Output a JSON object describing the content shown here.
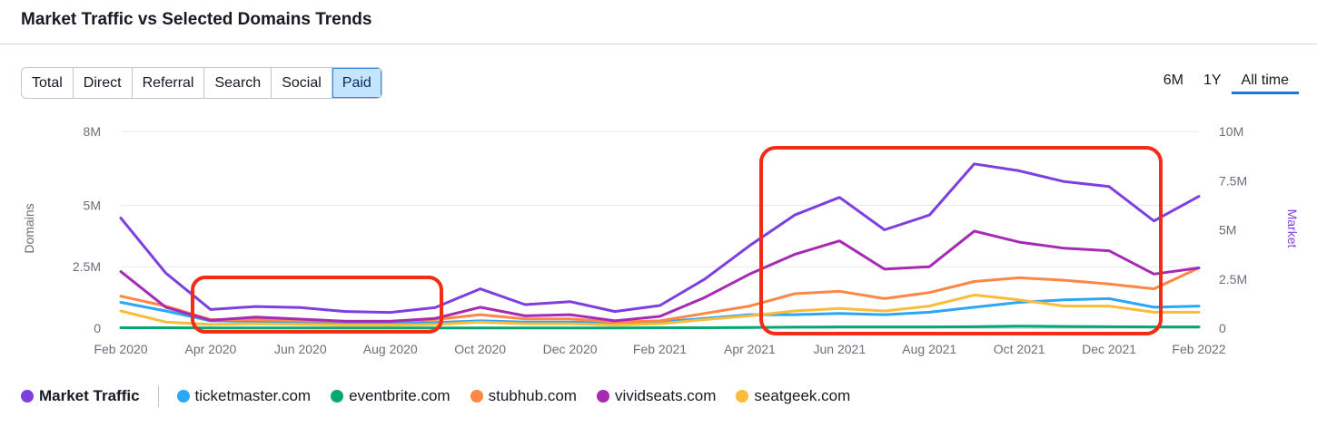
{
  "header": {
    "title": "Market Traffic vs Selected Domains Trends"
  },
  "tabs": [
    {
      "label": "Total",
      "active": false
    },
    {
      "label": "Direct",
      "active": false
    },
    {
      "label": "Referral",
      "active": false
    },
    {
      "label": "Search",
      "active": false
    },
    {
      "label": "Social",
      "active": false
    },
    {
      "label": "Paid",
      "active": true
    }
  ],
  "ranges": [
    {
      "label": "6M",
      "active": false
    },
    {
      "label": "1Y",
      "active": false
    },
    {
      "label": "All time",
      "active": true
    }
  ],
  "legend": [
    {
      "label": "Market Traffic",
      "color": "#7e3fe0",
      "primary": true
    },
    {
      "label": "ticketmaster.com",
      "color": "#2aa7f8"
    },
    {
      "label": "eventbrite.com",
      "color": "#04a871"
    },
    {
      "label": "stubhub.com",
      "color": "#ff8644"
    },
    {
      "label": "vividseats.com",
      "color": "#a72ab5"
    },
    {
      "label": "seatgeek.com",
      "color": "#fdbb3a"
    }
  ],
  "chart_data": {
    "type": "line",
    "x": [
      "Feb 2020",
      "Mar 2020",
      "Apr 2020",
      "May 2020",
      "Jun 2020",
      "Jul 2020",
      "Aug 2020",
      "Sep 2020",
      "Oct 2020",
      "Nov 2020",
      "Dec 2020",
      "Jan 2021",
      "Feb 2021",
      "Mar 2021",
      "Apr 2021",
      "May 2021",
      "Jun 2021",
      "Jul 2021",
      "Aug 2021",
      "Sep 2021",
      "Oct 2021",
      "Nov 2021",
      "Dec 2021",
      "Jan 2022",
      "Feb 2022"
    ],
    "x_tick_labels": [
      "Feb 2020",
      "Apr 2020",
      "Jun 2020",
      "Aug 2020",
      "Oct 2020",
      "Dec 2020",
      "Feb 2021",
      "Apr 2021",
      "Jun 2021",
      "Aug 2021",
      "Oct 2021",
      "Dec 2021",
      "Feb 2022"
    ],
    "left_axis": {
      "label": "Domains",
      "ticks": [
        "0",
        "2.5M",
        "5M",
        "8M"
      ],
      "tick_values": [
        0,
        2500000,
        5000000,
        8000000
      ],
      "range": [
        0,
        8000000
      ]
    },
    "right_axis": {
      "label": "Market",
      "ticks": [
        "0",
        "2.5M",
        "5M",
        "7.5M",
        "10M"
      ],
      "tick_values": [
        0,
        2500000,
        5000000,
        7500000,
        10000000
      ],
      "range": [
        0,
        10000000
      ]
    },
    "grid": true,
    "series": [
      {
        "name": "Market Traffic",
        "axis": "right",
        "color": "#7e3fe0",
        "values": [
          5600000,
          2800000,
          950000,
          1100000,
          1050000,
          850000,
          800000,
          1050000,
          2000000,
          1200000,
          1350000,
          850000,
          1150000,
          2500000,
          4200000,
          5750000,
          6650000,
          5000000,
          5750000,
          8350000,
          8000000,
          7450000,
          7200000,
          5450000,
          6700000
        ]
      },
      {
        "name": "ticketmaster.com",
        "axis": "left",
        "color": "#2aa7f8",
        "values": [
          1050000,
          700000,
          300000,
          280000,
          220000,
          200000,
          200000,
          230000,
          300000,
          250000,
          250000,
          200000,
          250000,
          400000,
          550000,
          550000,
          600000,
          550000,
          650000,
          850000,
          1050000,
          1150000,
          1200000,
          850000,
          900000
        ]
      },
      {
        "name": "eventbrite.com",
        "axis": "left",
        "color": "#04a871",
        "values": [
          20000,
          20000,
          10000,
          10000,
          10000,
          10000,
          10000,
          10000,
          10000,
          10000,
          10000,
          10000,
          20000,
          20000,
          30000,
          40000,
          50000,
          50000,
          50000,
          60000,
          80000,
          70000,
          60000,
          50000,
          50000
        ]
      },
      {
        "name": "stubhub.com",
        "axis": "left",
        "color": "#ff8644",
        "values": [
          1300000,
          900000,
          350000,
          350000,
          300000,
          280000,
          280000,
          350000,
          550000,
          380000,
          380000,
          250000,
          300000,
          600000,
          900000,
          1400000,
          1500000,
          1200000,
          1450000,
          1900000,
          2050000,
          1950000,
          1800000,
          1600000,
          2450000
        ]
      },
      {
        "name": "vividseats.com",
        "axis": "left",
        "color": "#a72ab5",
        "values": [
          2300000,
          850000,
          320000,
          450000,
          370000,
          280000,
          280000,
          400000,
          850000,
          500000,
          550000,
          300000,
          480000,
          1250000,
          2200000,
          3000000,
          3550000,
          2400000,
          2500000,
          3950000,
          3500000,
          3250000,
          3150000,
          2200000,
          2450000
        ]
      },
      {
        "name": "seatgeek.com",
        "axis": "left",
        "color": "#fdbb3a",
        "values": [
          700000,
          250000,
          150000,
          180000,
          160000,
          130000,
          130000,
          150000,
          250000,
          180000,
          180000,
          130000,
          180000,
          350000,
          500000,
          700000,
          800000,
          700000,
          900000,
          1350000,
          1150000,
          900000,
          900000,
          650000,
          650000
        ]
      }
    ]
  }
}
